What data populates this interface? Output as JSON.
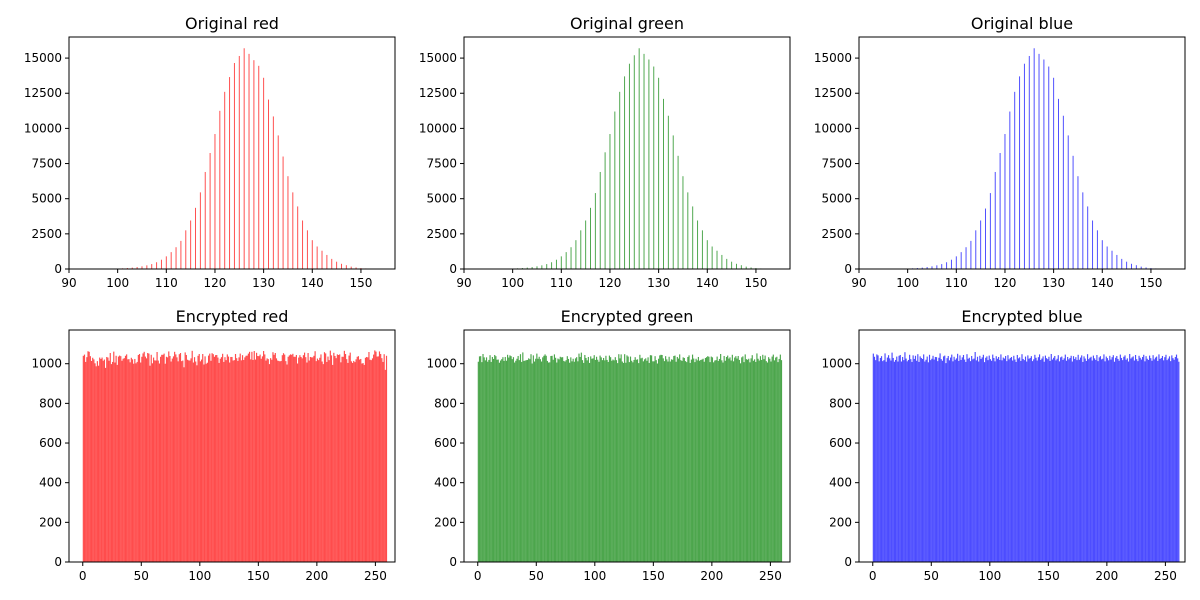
{
  "chart_data": [
    {
      "type": "bar",
      "title": "Original red",
      "color": "#ff0000",
      "bar_alpha": 0.7,
      "xlim": [
        90,
        157
      ],
      "ylim": [
        0,
        16500
      ],
      "xticks": [
        90,
        100,
        110,
        120,
        130,
        140,
        150
      ],
      "yticks": [
        0,
        2500,
        5000,
        7500,
        10000,
        12500,
        15000
      ],
      "x": [
        98,
        99,
        100,
        101,
        102,
        103,
        104,
        105,
        106,
        107,
        108,
        109,
        110,
        111,
        112,
        113,
        114,
        115,
        116,
        117,
        118,
        119,
        120,
        121,
        122,
        123,
        124,
        125,
        126,
        127,
        128,
        129,
        130,
        131,
        132,
        133,
        134,
        135,
        136,
        137,
        138,
        139,
        140,
        141,
        142,
        143,
        144,
        145,
        146,
        147,
        148,
        149,
        150,
        151,
        152,
        153,
        154
      ],
      "values": [
        10,
        20,
        30,
        50,
        70,
        100,
        140,
        190,
        260,
        350,
        480,
        660,
        900,
        1200,
        1550,
        2000,
        2750,
        3450,
        4350,
        5450,
        6900,
        8250,
        9600,
        11250,
        12600,
        13650,
        14650,
        15150,
        15700,
        15300,
        14850,
        14450,
        13600,
        12050,
        10850,
        9500,
        8000,
        6600,
        5450,
        4450,
        3450,
        2750,
        2050,
        1600,
        1300,
        1000,
        720,
        520,
        370,
        270,
        170,
        110,
        70,
        40,
        20,
        10,
        5
      ]
    },
    {
      "type": "bar",
      "title": "Original green",
      "color": "#008000",
      "bar_alpha": 0.7,
      "xlim": [
        90,
        157
      ],
      "ylim": [
        0,
        16500
      ],
      "xticks": [
        90,
        100,
        110,
        120,
        130,
        140,
        150
      ],
      "yticks": [
        0,
        2500,
        5000,
        7500,
        10000,
        12500,
        15000
      ],
      "x": [
        98,
        99,
        100,
        101,
        102,
        103,
        104,
        105,
        106,
        107,
        108,
        109,
        110,
        111,
        112,
        113,
        114,
        115,
        116,
        117,
        118,
        119,
        120,
        121,
        122,
        123,
        124,
        125,
        126,
        127,
        128,
        129,
        130,
        131,
        132,
        133,
        134,
        135,
        136,
        137,
        138,
        139,
        140,
        141,
        142,
        143,
        144,
        145,
        146,
        147,
        148,
        149,
        150,
        151,
        152,
        153,
        154
      ],
      "values": [
        10,
        20,
        30,
        50,
        70,
        100,
        140,
        190,
        260,
        350,
        480,
        660,
        900,
        1200,
        1550,
        2050,
        2750,
        3450,
        4350,
        5400,
        6900,
        8300,
        9600,
        11200,
        12600,
        13700,
        14600,
        15200,
        15700,
        15300,
        14900,
        14400,
        13600,
        12100,
        10900,
        9500,
        8050,
        6600,
        5450,
        4450,
        3450,
        2750,
        2050,
        1600,
        1300,
        1000,
        720,
        520,
        370,
        270,
        170,
        110,
        70,
        40,
        20,
        10,
        5
      ]
    },
    {
      "type": "bar",
      "title": "Original blue",
      "color": "#0000ff",
      "bar_alpha": 0.7,
      "xlim": [
        90,
        157
      ],
      "ylim": [
        0,
        16500
      ],
      "xticks": [
        90,
        100,
        110,
        120,
        130,
        140,
        150
      ],
      "yticks": [
        0,
        2500,
        5000,
        7500,
        10000,
        12500,
        15000
      ],
      "x": [
        98,
        99,
        100,
        101,
        102,
        103,
        104,
        105,
        106,
        107,
        108,
        109,
        110,
        111,
        112,
        113,
        114,
        115,
        116,
        117,
        118,
        119,
        120,
        121,
        122,
        123,
        124,
        125,
        126,
        127,
        128,
        129,
        130,
        131,
        132,
        133,
        134,
        135,
        136,
        137,
        138,
        139,
        140,
        141,
        142,
        143,
        144,
        145,
        146,
        147,
        148,
        149,
        150,
        151,
        152,
        153,
        154
      ],
      "values": [
        10,
        20,
        30,
        50,
        70,
        100,
        140,
        190,
        260,
        350,
        480,
        660,
        900,
        1200,
        1550,
        2000,
        2750,
        3450,
        4300,
        5400,
        6900,
        8250,
        9600,
        11200,
        12600,
        13700,
        14600,
        15150,
        15700,
        15300,
        14900,
        14400,
        13600,
        12100,
        10900,
        9500,
        8050,
        6600,
        5450,
        4450,
        3450,
        2750,
        2050,
        1600,
        1300,
        1000,
        720,
        520,
        370,
        270,
        170,
        110,
        70,
        40,
        20,
        10,
        5
      ]
    },
    {
      "type": "bar",
      "title": "Encrypted red",
      "color": "#ff0000",
      "bar_alpha": 0.7,
      "xlim": [
        -11.75,
        266.75
      ],
      "ylim": [
        0,
        1170
      ],
      "xticks": [
        0,
        50,
        100,
        150,
        200,
        250
      ],
      "yticks": [
        0,
        200,
        400,
        600,
        800,
        1000
      ],
      "x_start": 0,
      "values": [
        1040,
        1046,
        1009,
        1033,
        1063,
        1060,
        1038,
        1014,
        1030,
        1022,
        1002,
        987,
        1013,
        990,
        1031,
        1024,
        1031,
        1015,
        1021,
        979,
        1034,
        1031,
        1015,
        1054,
        998,
        1009,
        1061,
        1006,
        1040,
        994,
        1036,
        1041,
        1038,
        1015,
        1025,
        1028,
        1040,
        1047,
        1022,
        1023,
        1007,
        1030,
        1022,
        1000,
        1024,
        1002,
        1009,
        1044,
        1049,
        1006,
        1035,
        1052,
        1060,
        1036,
        1027,
        1054,
        1051,
        990,
        1045,
        1002,
        1031,
        1017,
        1016,
        1059,
        1016,
        1001,
        1035,
        1045,
        1045,
        1051,
        1000,
        1035,
        1032,
        1062,
        1039,
        1011,
        1026,
        1037,
        1060,
        1047,
        1032,
        1012,
        1048,
        1054,
        1013,
        1016,
        982,
        1057,
        1044,
        1020,
        1017,
        1016,
        1027,
        1065,
        1006,
        1033,
        1011,
        992,
        1040,
        1049,
        1012,
        1021,
        1049,
        996,
        1037,
        1000,
        1005,
        1041,
        1051,
        1015,
        1053,
        1048,
        1035,
        1043,
        1044,
        1031,
        1004,
        1025,
        1033,
        1050,
        1009,
        1033,
        1018,
        1047,
        1036,
        1006,
        1034,
        1034,
        1016,
        1018,
        1049,
        1028,
        1014,
        1032,
        1051,
        1017,
        1043,
        1019,
        1032,
        1040,
        1041,
        1051,
        1060,
        1022,
        1060,
        1019,
        1064,
        1021,
        1055,
        1039,
        1038,
        1046,
        1025,
        1037,
        1064,
        1047,
        1016,
        1027,
        1023,
        998,
        1028,
        1020,
        1058,
        1045,
        1054,
        1027,
        1016,
        1014,
        1012,
        1014,
        1043,
        1053,
        1046,
        1013,
        996,
        1035,
        1042,
        1047,
        1045,
        1050,
        1035,
        1035,
        1044,
        1001,
        1031,
        1043,
        1034,
        1027,
        1043,
        1056,
        1033,
        1006,
        1054,
        1016,
        1034,
        1032,
        1032,
        1040,
        1063,
        1013,
        1026,
        1018,
        1030,
        1047,
        1011,
        998,
        1058,
        1052,
        1009,
        1036,
        1018,
        1066,
        1042,
        994,
        1055,
        1039,
        1028,
        1047,
        1044,
        1047,
        1007,
        1035,
        1035,
        1065,
        1049,
        1023,
        1004,
        1041,
        1056,
        1012,
        1004,
        1014,
        1008,
        1022,
        1035,
        1038,
        1021,
        1024,
        1001,
        1003,
        994,
        1030,
        1034,
        1032,
        1059,
        1020,
        1018,
        1027,
        1046,
        1067,
        1061,
        1036,
        1037,
        1062,
        1049,
        1028,
        1009,
        1048,
        969,
        1040
      ]
    },
    {
      "type": "bar",
      "title": "Encrypted green",
      "color": "#008000",
      "bar_alpha": 0.7,
      "xlim": [
        -11.75,
        266.75
      ],
      "ylim": [
        0,
        1170
      ],
      "xticks": [
        0,
        50,
        100,
        150,
        200,
        250
      ],
      "yticks": [
        0,
        200,
        400,
        600,
        800,
        1000
      ],
      "x_start": 0,
      "values": [
        1010,
        1037,
        1038,
        1008,
        1049,
        1032,
        1017,
        1032,
        1010,
        1019,
        1043,
        1009,
        1034,
        1024,
        1044,
        1038,
        1020,
        1021,
        1005,
        1016,
        1023,
        1033,
        1014,
        1034,
        1015,
        1045,
        1031,
        1042,
        1038,
        1023,
        1033,
        1006,
        1015,
        1025,
        1039,
        1018,
        1048,
        1009,
        1057,
        1014,
        1016,
        1018,
        1019,
        1027,
        1023,
        1048,
        1001,
        1042,
        1011,
        1025,
        1051,
        1025,
        1035,
        1023,
        1011,
        1032,
        1040,
        1047,
        1040,
        1014,
        1006,
        1007,
        1039,
        1040,
        1020,
        1047,
        1030,
        1006,
        1026,
        1022,
        1035,
        1032,
        1033,
        1014,
        1011,
        1018,
        1038,
        1024,
        1005,
        1032,
        1012,
        1025,
        1010,
        1027,
        1033,
        1012,
        1051,
        1034,
        1056,
        1018,
        1004,
        1044,
        1029,
        1017,
        1034,
        1004,
        1037,
        1025,
        1027,
        1043,
        1019,
        1035,
        1020,
        1010,
        1041,
        1032,
        1018,
        1029,
        1017,
        1040,
        1019,
        1009,
        1041,
        1033,
        1015,
        1021,
        1017,
        1033,
        1018,
        1003,
        1048,
        1027,
        1047,
        1011,
        1004,
        1048,
        1005,
        1042,
        1036,
        1008,
        1036,
        1015,
        1007,
        1019,
        1033,
        1020,
        1022,
        1003,
        1045,
        1027,
        1030,
        1012,
        1022,
        1027,
        1015,
        1032,
        1004,
        1043,
        1042,
        1012,
        1012,
        1038,
        1018,
        1001,
        1025,
        1042,
        1045,
        1044,
        1027,
        1013,
        1038,
        1022,
        1011,
        1035,
        1011,
        1022,
        1020,
        1039,
        1041,
        1010,
        1034,
        1026,
        1047,
        1018,
        1014,
        1032,
        1029,
        1013,
        1008,
        1034,
        1042,
        1004,
        1021,
        1046,
        1026,
        1008,
        1025,
        1017,
        1034,
        1015,
        1019,
        1021,
        1025,
        1010,
        1029,
        1033,
        1038,
        1035,
        1008,
        1036,
        1032,
        1007,
        1016,
        1018,
        1036,
        1014,
        1024,
        1049,
        1017,
        1006,
        1039,
        1015,
        1034,
        1041,
        1026,
        1032,
        1016,
        1045,
        1012,
        1031,
        1038,
        1026,
        1039,
        1019,
        1002,
        1032,
        1037,
        1008,
        1047,
        1023,
        1020,
        1025,
        1007,
        1027,
        1043,
        1015,
        1022,
        1009,
        1052,
        1025,
        1016,
        1038,
        1019,
        1045,
        1023,
        1041,
        1013,
        1006,
        1033,
        1025,
        1011,
        1036,
        1046,
        1017,
        1031,
        1035,
        1008,
        1024,
        1046,
        1018
      ]
    },
    {
      "type": "bar",
      "title": "Encrypted blue",
      "color": "#0000ff",
      "bar_alpha": 0.7,
      "xlim": [
        -11.75,
        266.75
      ],
      "ylim": [
        0,
        1170
      ],
      "xticks": [
        0,
        50,
        100,
        150,
        200,
        250
      ],
      "yticks": [
        0,
        200,
        400,
        600,
        800,
        1000
      ],
      "x_start": 0,
      "values": [
        1051,
        1035,
        1018,
        1047,
        1042,
        1012,
        1029,
        1038,
        1013,
        1018,
        1052,
        1010,
        1031,
        1043,
        1027,
        1016,
        1056,
        1029,
        1010,
        1019,
        1036,
        1011,
        1040,
        1044,
        1011,
        1034,
        1018,
        1058,
        1026,
        1012,
        1019,
        1045,
        1023,
        1009,
        1042,
        1024,
        1040,
        1015,
        1048,
        1009,
        1037,
        1029,
        1024,
        1047,
        1011,
        1020,
        1036,
        1007,
        1045,
        1018,
        1025,
        1040,
        1021,
        1034,
        1033,
        1013,
        1030,
        1052,
        1023,
        1015,
        1037,
        1041,
        1003,
        1028,
        1039,
        1017,
        1031,
        1046,
        1012,
        1035,
        1020,
        1027,
        1050,
        1014,
        1042,
        1019,
        1032,
        1044,
        1021,
        1009,
        1048,
        1025,
        1030,
        1013,
        1039,
        1022,
        1026,
        1059,
        1017,
        1035,
        1011,
        1040,
        1024,
        1032,
        1045,
        1008,
        1030,
        1037,
        1018,
        1041,
        1023,
        1015,
        1046,
        1029,
        1012,
        1038,
        1025,
        1034,
        1019,
        1047,
        1017,
        1031,
        1026,
        1039,
        1013,
        1043,
        1022,
        1029,
        1034,
        1016,
        1040,
        1021,
        1009,
        1044,
        1027,
        1032,
        1014,
        1048,
        1024,
        1018,
        1036,
        1011,
        1042,
        1025,
        1029,
        1038,
        1013,
        1022,
        1045,
        1030,
        1016,
        1033,
        1047,
        1019,
        1026,
        1037,
        1010,
        1041,
        1028,
        1023,
        1035,
        1014,
        1049,
        1021,
        1030,
        1039,
        1017,
        1025,
        1043,
        1012,
        1032,
        1036,
        1019,
        1027,
        1046,
        1015,
        1034,
        1022,
        1029,
        1040,
        1011,
        1038,
        1024,
        1033,
        1018,
        1045,
        1020,
        1031,
        1042,
        1009,
        1037,
        1026,
        1014,
        1048,
        1023,
        1030,
        1035,
        1016,
        1041,
        1027,
        1019,
        1044,
        1013,
        1032,
        1038,
        1022,
        1025,
        1047,
        1012,
        1036,
        1028,
        1017,
        1040,
        1021,
        1033,
        1043,
        1010,
        1030,
        1039,
        1024,
        1015,
        1046,
        1029,
        1018,
        1035,
        1042,
        1020,
        1027,
        1011,
        1049,
        1026,
        1032,
        1037,
        1016,
        1044,
        1023,
        1013,
        1040,
        1030,
        1021,
        1034,
        1045,
        1012,
        1038,
        1025,
        1019,
        1041,
        1028,
        1015,
        1043,
        1022,
        1031,
        1036,
        1014,
        1047,
        1024,
        1029,
        1039,
        1017,
        1033,
        1045,
        1018,
        1026,
        1037,
        1013,
        1042,
        1028,
        1020,
        1034,
        1046,
        1027,
        1010
      ]
    }
  ]
}
